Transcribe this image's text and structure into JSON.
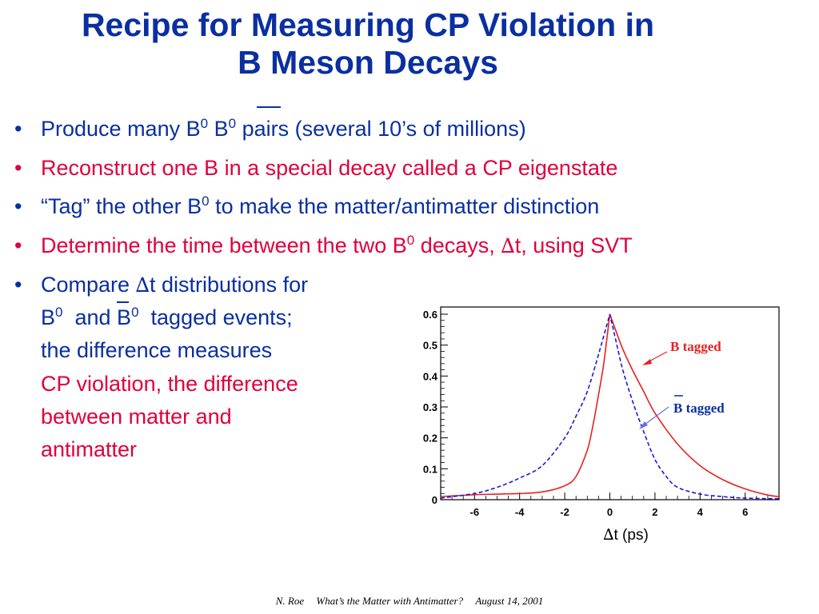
{
  "slide": {
    "title_line1": "Recipe for Measuring CP Violation in",
    "title_line2": "B Meson Decays",
    "bullet_char": "•",
    "b1": {
      "pre": "Produce many B",
      "sup1": "0",
      "mid": " B",
      "sup2": "0",
      "post": " pairs (several 10’s of millions)"
    },
    "b2": {
      "text": "Reconstruct one B in a special decay called a CP eigenstate"
    },
    "b3": {
      "pre": "“Tag” the other B",
      "sup": "0",
      "post": " to make the matter/antimatter distinction"
    },
    "b4": {
      "pre": "Determine the time between the two B",
      "sup": "0",
      "mid": " decays, ",
      "delta": "∆",
      "post": "t, using SVT"
    },
    "b5": {
      "l1_pre": "Compare ",
      "delta": "∆",
      "l1_post": "t distributions for",
      "l2_b1": "B",
      "l2_sup1": "0",
      "l2_and": "  and ",
      "l2_b2": "B",
      "l2_sup2": "0",
      "l2_post": "  tagged events;",
      "l3": "the difference measures",
      "l4": "CP violation, the difference",
      "l5": "between matter and",
      "l6": "antimatter"
    },
    "footer": {
      "author": "N. Roe",
      "talk": "What’s the Matter with Antimatter?",
      "date": "August 14, 2001"
    },
    "colors": {
      "title": "#0a2fa0",
      "emphasis": "#e0003c",
      "curve_b": "#e82020",
      "curve_bbar": "#1a1adc",
      "bbar_label": "#0a2fa0"
    }
  },
  "chart_data": {
    "type": "line",
    "xlabel_delta": "∆",
    "xlabel": "t (ps)",
    "ylabel": "",
    "xlim": [
      -7.5,
      7.5
    ],
    "ylim": [
      0,
      0.6
    ],
    "x_ticks": [
      -6,
      -4,
      -2,
      0,
      2,
      4,
      6
    ],
    "y_ticks": [
      0,
      0.1,
      0.2,
      0.3,
      0.4,
      0.5,
      0.6
    ],
    "x_tick_labels": [
      "-6",
      "-4",
      "-2",
      "0",
      "2",
      "4",
      "6"
    ],
    "y_tick_labels": [
      "0",
      "0.1",
      "0.2",
      "0.3",
      "0.4",
      "0.5",
      "0.6"
    ],
    "grid": false,
    "series": [
      {
        "name": "B tagged",
        "style": "solid",
        "color": "#e82020",
        "x": [
          -7.5,
          -6,
          -5,
          -4,
          -3,
          -2,
          -1.5,
          -1,
          -0.75,
          -0.5,
          -0.25,
          0,
          0.5,
          1,
          1.5,
          2,
          3,
          4,
          5,
          6,
          7,
          7.5
        ],
        "y": [
          0.01,
          0.016,
          0.018,
          0.02,
          0.025,
          0.045,
          0.075,
          0.16,
          0.24,
          0.34,
          0.45,
          0.6,
          0.5,
          0.42,
          0.35,
          0.28,
          0.18,
          0.11,
          0.065,
          0.035,
          0.015,
          0.01
        ]
      },
      {
        "name": "B tagged (anti-B)",
        "style": "dashed",
        "color": "#1a1adc",
        "x": [
          -7.5,
          -6,
          -5,
          -4,
          -3,
          -2,
          -1.5,
          -1,
          -0.5,
          0,
          0.5,
          1,
          1.5,
          2,
          2.5,
          3,
          4,
          5,
          6,
          7.5
        ],
        "y": [
          0.005,
          0.02,
          0.04,
          0.07,
          0.11,
          0.2,
          0.27,
          0.35,
          0.47,
          0.6,
          0.44,
          0.32,
          0.22,
          0.13,
          0.075,
          0.04,
          0.018,
          0.01,
          0.005,
          0.003
        ]
      }
    ],
    "annotations": [
      {
        "text": "B tagged",
        "color": "#e82020",
        "overbar": false
      },
      {
        "text": "B tagged",
        "color": "#0a2fa0",
        "overbar": true
      }
    ]
  }
}
